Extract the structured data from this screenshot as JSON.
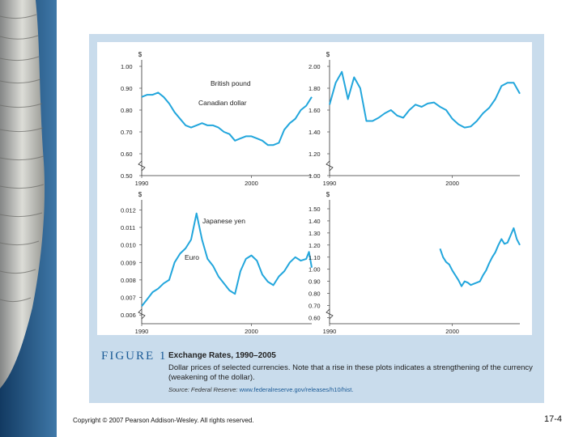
{
  "figure": {
    "label": "FIGURE 1",
    "title": "Exchange Rates, 1990–2005",
    "description": "Dollar prices of selected currencies. Note that a rise in these plots indicates a strengthening of the currency (weakening of the dollar).",
    "source_prefix": "Source: Federal Reserve:",
    "source_url": "www.federalreserve.gov/releases/h10/hist."
  },
  "footer": {
    "copyright": "Copyright © 2007 Pearson Addison-Wesley. All rights reserved.",
    "page": "17-4"
  },
  "colors": {
    "line": "#22a6dc",
    "panel": "#c9dcec",
    "plot": "#ffffff",
    "accent": "#1a5a96"
  },
  "chart_data": [
    {
      "type": "line",
      "unit": "$",
      "annotation": "Canadian dollar",
      "yticks": [
        1.0,
        0.9,
        0.8,
        0.7,
        0.6,
        0.5
      ],
      "ytick_labels": [
        "1.00",
        "0.90",
        "0.80",
        "0.70",
        "0.60",
        "0.50"
      ],
      "ylim": [
        0.5,
        1.0
      ],
      "xlim": [
        1990,
        2005.5
      ],
      "xtick_labels": [
        "1990",
        "2000"
      ],
      "series": [
        {
          "x": [
            1990,
            1990.5,
            1991,
            1991.5,
            1992,
            1992.5,
            1993,
            1993.5,
            1994,
            1994.5,
            1995,
            1995.5,
            1996,
            1996.5,
            1997,
            1997.5,
            1998,
            1998.5,
            1999,
            1999.5,
            2000,
            2000.5,
            2001,
            2001.5,
            2002,
            2002.5,
            2003,
            2003.5,
            2004,
            2004.5,
            2005,
            2005.5
          ],
          "values": [
            0.86,
            0.87,
            0.87,
            0.88,
            0.86,
            0.83,
            0.79,
            0.76,
            0.73,
            0.72,
            0.73,
            0.74,
            0.73,
            0.73,
            0.72,
            0.7,
            0.69,
            0.66,
            0.67,
            0.68,
            0.68,
            0.67,
            0.66,
            0.64,
            0.64,
            0.65,
            0.71,
            0.74,
            0.76,
            0.8,
            0.82,
            0.86
          ]
        }
      ]
    },
    {
      "type": "line",
      "unit": "$",
      "annotation": "British pound",
      "yticks": [
        2.0,
        1.8,
        1.6,
        1.4,
        1.2,
        1.0
      ],
      "ytick_labels": [
        "2.00",
        "1.80",
        "1.60",
        "1.40",
        "1.20",
        "1.00"
      ],
      "ylim": [
        1.0,
        2.0
      ],
      "xlim": [
        1990,
        2005.5
      ],
      "xtick_labels": [
        "1990",
        "2000"
      ],
      "series": [
        {
          "x": [
            1990,
            1990.5,
            1991,
            1991.5,
            1992,
            1992.5,
            1993,
            1993.5,
            1994,
            1994.5,
            1995,
            1995.5,
            1996,
            1996.5,
            1997,
            1997.5,
            1998,
            1998.5,
            1999,
            1999.5,
            2000,
            2000.5,
            2001,
            2001.5,
            2002,
            2002.5,
            2003,
            2003.5,
            2004,
            2004.5,
            2005,
            2005.5
          ],
          "values": [
            1.65,
            1.85,
            1.95,
            1.7,
            1.9,
            1.8,
            1.5,
            1.5,
            1.53,
            1.57,
            1.6,
            1.55,
            1.53,
            1.6,
            1.65,
            1.63,
            1.66,
            1.67,
            1.63,
            1.6,
            1.52,
            1.47,
            1.44,
            1.45,
            1.5,
            1.57,
            1.62,
            1.7,
            1.82,
            1.85,
            1.85,
            1.75
          ]
        }
      ]
    },
    {
      "type": "line",
      "unit": "$",
      "annotation": "Japanese yen",
      "yticks": [
        0.012,
        0.011,
        0.01,
        0.009,
        0.008,
        0.007,
        0.006
      ],
      "ytick_labels": [
        "0.012",
        "0.011",
        "0.010",
        "0.009",
        "0.008",
        "0.007",
        "0.006"
      ],
      "ylim": [
        0.0055,
        0.0122
      ],
      "xlim": [
        1990,
        2005.5
      ],
      "xtick_labels": [
        "1990",
        "2000"
      ],
      "series": [
        {
          "x": [
            1990,
            1990.5,
            1991,
            1991.5,
            1992,
            1992.5,
            1993,
            1993.5,
            1994,
            1994.5,
            1995,
            1995.5,
            1996,
            1996.5,
            1997,
            1997.5,
            1998,
            1998.5,
            1999,
            1999.5,
            2000,
            2000.5,
            2001,
            2001.5,
            2002,
            2002.5,
            2003,
            2003.5,
            2004,
            2004.5,
            2005,
            2005.25,
            2005.5
          ],
          "values": [
            0.0065,
            0.0069,
            0.0073,
            0.0075,
            0.0078,
            0.008,
            0.009,
            0.0095,
            0.0098,
            0.0103,
            0.0118,
            0.0103,
            0.0092,
            0.0088,
            0.0082,
            0.0078,
            0.0074,
            0.0072,
            0.0085,
            0.0092,
            0.0094,
            0.0091,
            0.0083,
            0.0079,
            0.0077,
            0.0082,
            0.0085,
            0.009,
            0.0093,
            0.0091,
            0.0092,
            0.0096,
            0.0087
          ]
        }
      ]
    },
    {
      "type": "line",
      "unit": "$",
      "annotation": "Euro",
      "yticks": [
        1.5,
        1.4,
        1.3,
        1.2,
        1.1,
        1.0,
        0.9,
        0.8,
        0.7,
        0.6
      ],
      "ytick_labels": [
        "1.50",
        "1.40",
        "1.30",
        "1.20",
        "1.10",
        "1.00",
        "0.90",
        "0.80",
        "0.70",
        "0.60"
      ],
      "ylim": [
        0.55,
        1.52
      ],
      "xlim": [
        1990,
        2005.5
      ],
      "xtick_labels": [
        "1990",
        "2000"
      ],
      "series": [
        {
          "x": [
            1999,
            1999.25,
            1999.5,
            1999.75,
            2000,
            2000.25,
            2000.5,
            2000.75,
            2001,
            2001.25,
            2001.5,
            2001.75,
            2002,
            2002.25,
            2002.5,
            2002.75,
            2003,
            2003.25,
            2003.5,
            2003.75,
            2004,
            2004.25,
            2004.5,
            2004.75,
            2005,
            2005.25,
            2005.5
          ],
          "values": [
            1.17,
            1.1,
            1.06,
            1.04,
            0.99,
            0.95,
            0.91,
            0.86,
            0.9,
            0.89,
            0.87,
            0.88,
            0.89,
            0.9,
            0.95,
            0.99,
            1.05,
            1.1,
            1.14,
            1.2,
            1.25,
            1.21,
            1.22,
            1.28,
            1.34,
            1.25,
            1.2
          ]
        }
      ]
    }
  ]
}
